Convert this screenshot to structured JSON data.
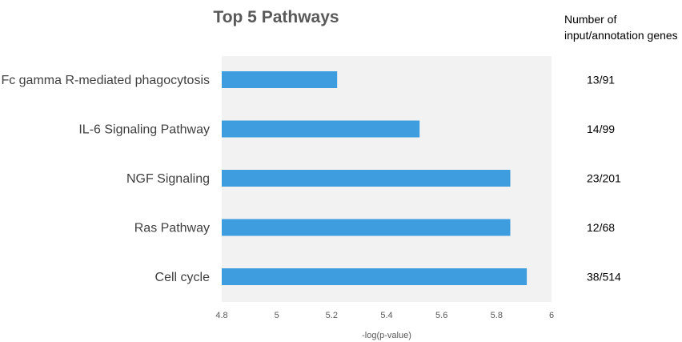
{
  "chart_data": {
    "type": "bar",
    "orientation": "horizontal",
    "title": "Top 5 Pathways",
    "xlabel": "-log(p-value)",
    "ylabel": "",
    "xlim": [
      4.8,
      6
    ],
    "x_ticks": [
      "4.8",
      "5",
      "5.2",
      "5.4",
      "5.6",
      "5.8",
      "6"
    ],
    "categories": [
      "Fc gamma R-mediated phagocytosis",
      "IL-6 Signaling Pathway",
      "NGF Signaling",
      "Ras Pathway",
      "Cell cycle"
    ],
    "values": [
      5.22,
      5.52,
      5.85,
      5.85,
      5.91
    ],
    "bar_color": "#3E9DDF",
    "plot_background": "#F2F2F2",
    "grid": false,
    "legend": "none",
    "annotation_header": "Number of input/annotation genes",
    "annotation_header_lines": [
      "Number of",
      "input/annotation genes"
    ],
    "annotations": [
      "13/91",
      "14/99",
      "23/201",
      "12/68",
      "38/514"
    ]
  }
}
